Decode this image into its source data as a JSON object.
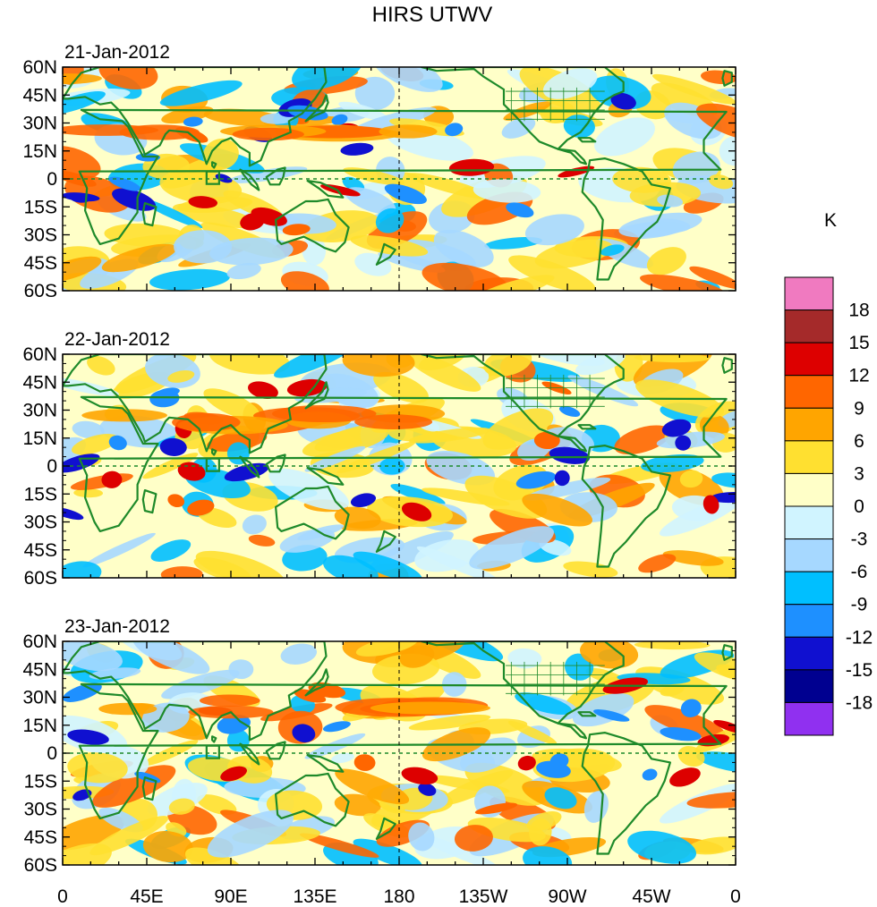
{
  "figure": {
    "title": "HIRS UTWV",
    "colorbar_unit": "K"
  },
  "panels": [
    {
      "date": "21-Jan-2012",
      "seed": 1
    },
    {
      "date": "22-Jan-2012",
      "seed": 2
    },
    {
      "date": "23-Jan-2012",
      "seed": 3
    }
  ],
  "axes": {
    "lat_labels": [
      "60N",
      "45N",
      "30N",
      "15N",
      "0",
      "15S",
      "30S",
      "45S",
      "60S"
    ],
    "lat_values": [
      60,
      45,
      30,
      15,
      0,
      -15,
      -30,
      -45,
      -60
    ],
    "lon_labels": [
      "0",
      "45E",
      "90E",
      "135E",
      "180",
      "135W",
      "90W",
      "45W",
      "0"
    ],
    "lon_values": [
      0,
      45,
      90,
      135,
      180,
      225,
      270,
      315,
      360
    ]
  },
  "colorbar": {
    "levels": [
      "18",
      "15",
      "12",
      "9",
      "6",
      "3",
      "0",
      "-3",
      "-6",
      "-9",
      "-12",
      "-15",
      "-18"
    ],
    "colors": [
      "#f07ac0",
      "#a52a2a",
      "#dd0000",
      "#ff6600",
      "#ffa500",
      "#ffe030",
      "#ffffc8",
      "#d0f4ff",
      "#a6d8ff",
      "#00bfff",
      "#1e90ff",
      "#1010d0",
      "#000090",
      "#9030f0"
    ]
  },
  "colors": {
    "coastline": "#1e8a2a",
    "frame": "#000000"
  }
}
